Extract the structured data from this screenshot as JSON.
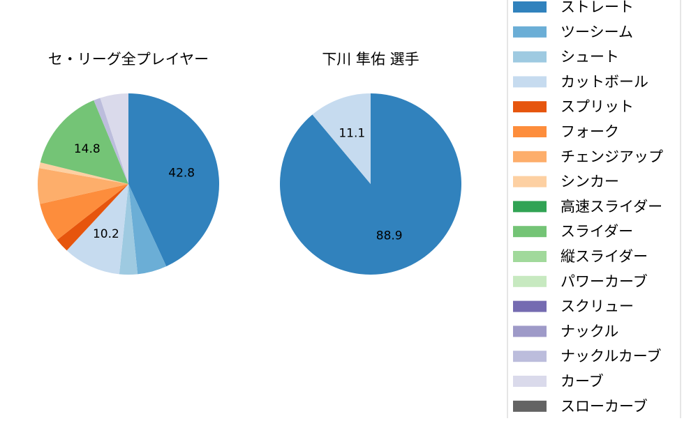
{
  "chart_data": [
    {
      "type": "pie",
      "title": "セ・リーグ全プレイヤー",
      "slices": [
        {
          "label": "ストレート",
          "value": 42.8,
          "color": "#3182bd",
          "show_label": true
        },
        {
          "label": "ツーシーム",
          "value": 5.2,
          "color": "#6baed6",
          "show_label": false
        },
        {
          "label": "シュート",
          "value": 3.2,
          "color": "#9ecae1",
          "show_label": false
        },
        {
          "label": "カットボール",
          "value": 10.2,
          "color": "#c6dbef",
          "show_label": true
        },
        {
          "label": "スプリット",
          "value": 2.5,
          "color": "#e6550d",
          "show_label": false
        },
        {
          "label": "フォーク",
          "value": 7.0,
          "color": "#fd8d3c",
          "show_label": false
        },
        {
          "label": "チェンジアップ",
          "value": 6.3,
          "color": "#fdae6b",
          "show_label": false
        },
        {
          "label": "シンカー",
          "value": 1.0,
          "color": "#fdd0a2",
          "show_label": false
        },
        {
          "label": "スライダー",
          "value": 14.8,
          "color": "#74c476",
          "show_label": true
        },
        {
          "label": "ナックルカーブ",
          "value": 1.2,
          "color": "#bcbddc",
          "show_label": false
        },
        {
          "label": "カーブ",
          "value": 5.0,
          "color": "#dadaeb",
          "show_label": false
        }
      ]
    },
    {
      "type": "pie",
      "title": "下川 隼佑  選手",
      "slices": [
        {
          "label": "ストレート",
          "value": 88.9,
          "color": "#3182bd",
          "show_label": true
        },
        {
          "label": "カットボール",
          "value": 11.1,
          "color": "#c6dbef",
          "show_label": true
        }
      ]
    }
  ],
  "legend": {
    "placement": "right",
    "items": [
      {
        "label": "ストレート",
        "color": "#3182bd"
      },
      {
        "label": "ツーシーム",
        "color": "#6baed6"
      },
      {
        "label": "シュート",
        "color": "#9ecae1"
      },
      {
        "label": "カットボール",
        "color": "#c6dbef"
      },
      {
        "label": "スプリット",
        "color": "#e6550d"
      },
      {
        "label": "フォーク",
        "color": "#fd8d3c"
      },
      {
        "label": "チェンジアップ",
        "color": "#fdae6b"
      },
      {
        "label": "シンカー",
        "color": "#fdd0a2"
      },
      {
        "label": "高速スライダー",
        "color": "#31a354"
      },
      {
        "label": "スライダー",
        "color": "#74c476"
      },
      {
        "label": "縦スライダー",
        "color": "#a1d99b"
      },
      {
        "label": "パワーカーブ",
        "color": "#c7e9c0"
      },
      {
        "label": "スクリュー",
        "color": "#756bb1"
      },
      {
        "label": "ナックル",
        "color": "#9e9ac8"
      },
      {
        "label": "ナックルカーブ",
        "color": "#bcbddc"
      },
      {
        "label": "カーブ",
        "color": "#dadaeb"
      },
      {
        "label": "スローカーブ",
        "color": "#636363"
      }
    ]
  }
}
